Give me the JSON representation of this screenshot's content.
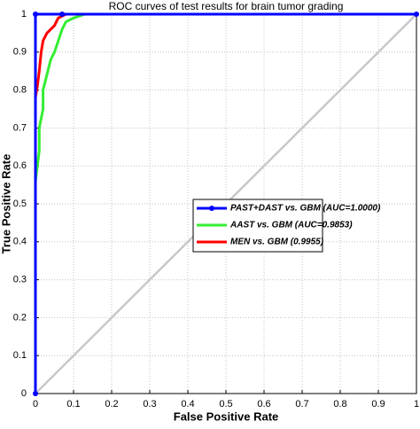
{
  "chart_data": {
    "type": "line",
    "title": "ROC curves of test results for brain tumor grading",
    "x_label": "False Positive Rate",
    "y_label": "True Positive Rate",
    "xlim": [
      0,
      1
    ],
    "ylim": [
      0,
      1
    ],
    "xticks": [
      0,
      0.1,
      0.2,
      0.3,
      0.4,
      0.5,
      0.6,
      0.7,
      0.8,
      0.9,
      1
    ],
    "yticks": [
      0,
      0.1,
      0.2,
      0.3,
      0.4,
      0.5,
      0.6,
      0.7,
      0.8,
      0.9,
      1
    ],
    "grid": true,
    "series": [
      {
        "name": "PAST+DAST vs. GBM (AUC=1.0000)",
        "color": "#0000ff",
        "marker": true,
        "x": [
          0,
          0,
          0.07,
          1
        ],
        "values": [
          0,
          1,
          1,
          1
        ]
      },
      {
        "name": "AAST vs. GBM (AUC=0.9853)",
        "color": "#33ee33",
        "marker": false,
        "x": [
          0,
          0,
          0.005,
          0.01,
          0.01,
          0.02,
          0.02,
          0.03,
          0.04,
          0.05,
          0.06,
          0.07,
          0.08,
          0.1,
          0.13,
          1
        ],
        "values": [
          0,
          0.56,
          0.6,
          0.64,
          0.7,
          0.75,
          0.8,
          0.84,
          0.88,
          0.9,
          0.93,
          0.96,
          0.98,
          0.99,
          1,
          1
        ]
      },
      {
        "name": "MEN vs. GBM (0.9955)",
        "color": "#ff0000",
        "marker": false,
        "x": [
          0,
          0,
          0.005,
          0.01,
          0.015,
          0.02,
          0.03,
          0.05,
          0.06,
          0.08,
          1
        ],
        "values": [
          0,
          0.78,
          0.81,
          0.85,
          0.9,
          0.93,
          0.95,
          0.97,
          0.99,
          1,
          1
        ]
      }
    ]
  }
}
